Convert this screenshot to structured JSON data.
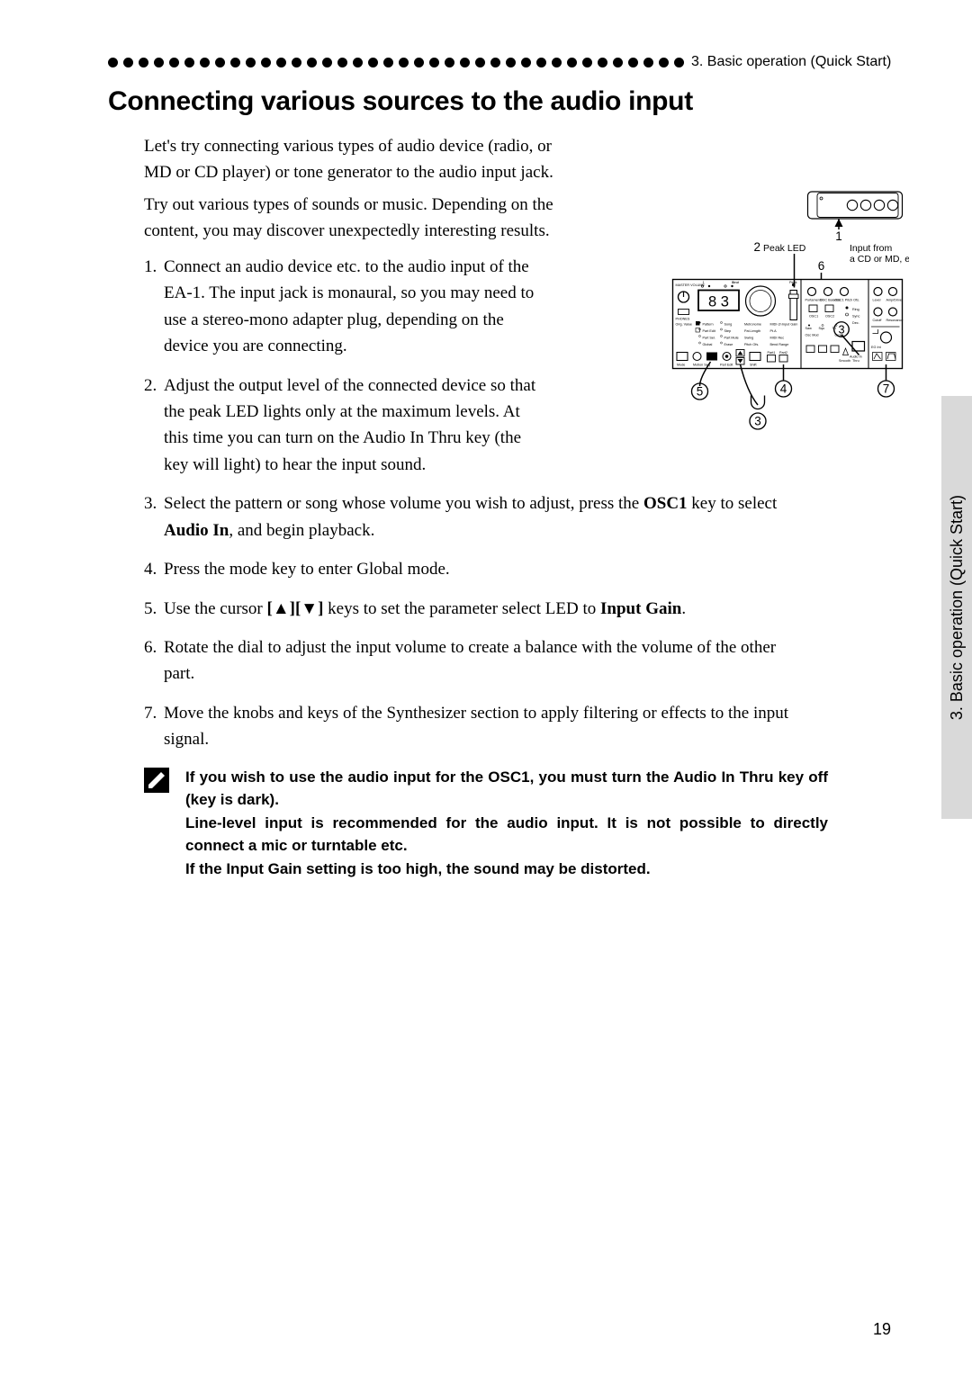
{
  "header": {
    "chapter_label": "3. Basic operation (Quick Start)",
    "dot_count": 38,
    "dot_color": "#000000"
  },
  "title": "Connecting various sources to the audio input",
  "intro": {
    "p1": "Let's try connecting various types of audio device (radio, or MD or CD player) or tone generator to the audio input jack.",
    "p2": "Try out various types of sounds or music. Depending on the content, you may discover unexpectedly interesting results."
  },
  "steps": [
    {
      "text_before": "Connect an audio device etc. to the audio input of the EA-1. The input jack is monaural, so you may need to use a stereo-mono adapter plug, depending on the device you are connecting.",
      "narrow": true
    },
    {
      "text_before": "Adjust the output level of the connected device so that the peak LED lights only at the maximum levels. At this time you can turn on the Audio In Thru key (the key will light) to hear the input sound.",
      "narrow": true
    },
    {
      "text_before": "Select the pattern or song whose volume you wish to adjust, press the ",
      "bold1": "OSC1",
      "mid1": " key to select ",
      "bold2": "Audio In",
      "text_after": ", and begin playback.",
      "narrow": false
    },
    {
      "text_before": "Press the mode key to enter Global mode.",
      "narrow": false
    },
    {
      "text_before": "Use the cursor ",
      "bold1": "[▲][▼]",
      "mid1": " keys to set the parameter select LED to ",
      "bold2": "Input Gain",
      "text_after": ".",
      "narrow": false
    },
    {
      "text_before": "Rotate the dial to adjust the input volume to create a balance with the volume of the other part.",
      "narrow": false
    },
    {
      "text_before": "Move the knobs and keys of the Synthesizer section to apply filtering or effects to the input signal.",
      "narrow": false
    }
  ],
  "note": {
    "lines": [
      "If you wish to use the audio input for the OSC1, you must turn the Audio In Thru key off (key is dark).",
      "Line-level input is recommended for the audio input. It is not possible to directly connect a mic or turntable etc.",
      "If the Input Gain setting is too high, the sound may be distorted."
    ],
    "icon": "pencil-icon"
  },
  "diagram": {
    "top_label_1": "1",
    "top_label_2": "2",
    "peak_led": "Peak LED",
    "input_from_1": "Input from",
    "input_from_2": "a CD or MD, etc.",
    "callouts": [
      "3",
      "4",
      "5",
      "6",
      "7",
      "3"
    ],
    "display_segment": "8 3",
    "panel_rows": [
      [
        "Pattern",
        "Song",
        "",
        "Metronome",
        "MIDI ch"
      ],
      [
        "Part Edit",
        "Step",
        "",
        "Pat.Length",
        "Pt.A"
      ],
      [
        "Part Sel.",
        "Part Mute",
        "",
        "Swing",
        "MIDI Rec"
      ],
      [
        "Global",
        "Erase",
        "",
        "Pitch Ofs.",
        "Bend Range"
      ]
    ],
    "mode_label": "Mode",
    "led_label": "Orig. Value",
    "small_labels": [
      "MASTER VOLUME",
      "PHONES",
      "Part1",
      "Part2",
      "Input Gain",
      "Peak"
    ],
    "right_panel_top": [
      "Portamento",
      "OSC Balance",
      "OSC1 Pitch Ofs."
    ],
    "right_panel_mid": [
      "OSC1",
      "OSC2"
    ],
    "right_panel_btn": [
      "Ring",
      "Sync",
      "Dec.",
      "Osc Mod",
      "Cross"
    ],
    "right_panel_far": [
      "Level",
      "Amp/Drive",
      "Cutoff",
      "Resonance"
    ],
    "audio_in": "Audio In\nThru",
    "panel_bottom_labels": [
      "Motion Seq",
      "Chord",
      "Part Edit",
      "Shift",
      "Chord",
      "Transpose"
    ],
    "dial_small": [
      "Tap",
      "Rest/Tie",
      "Play/Pause",
      "Rec",
      "Stop"
    ],
    "colors": {
      "stroke": "#000000",
      "background": "#ffffff"
    }
  },
  "side_tab": {
    "label": "3. Basic operation (Quick Start)",
    "bg": "#d9d9d9"
  },
  "page_number": "19",
  "typography": {
    "body_font": "Times New Roman / serif",
    "ui_font": "Arial / Helvetica",
    "h1_size_pt": 22,
    "body_size_pt": 14,
    "note_size_pt": 12
  }
}
